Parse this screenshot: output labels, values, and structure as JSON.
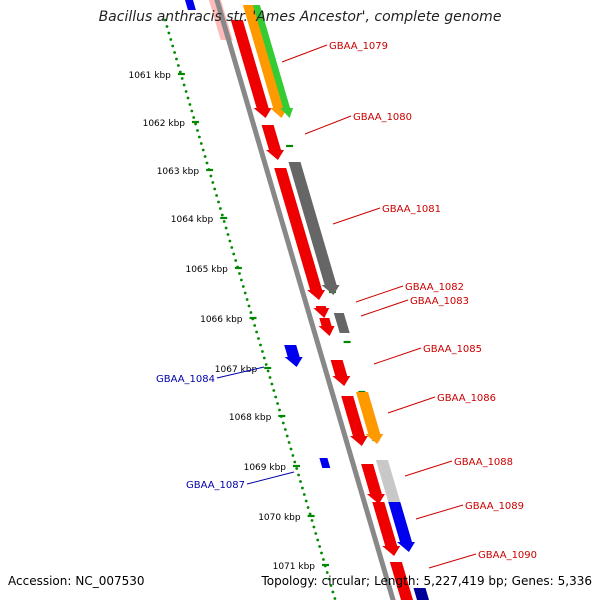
{
  "title": "Bacillus anthracis str. 'Ames Ancestor', complete genome",
  "footer": {
    "accession_label": "Accession:",
    "accession": "NC_007530",
    "topology_label": "Topology:",
    "topology": "circular;",
    "length_label": "Length:",
    "length": "5,227,419 bp;",
    "genes_label": "Genes:",
    "genes": "5,336"
  },
  "ticks": [
    "1061 kbp",
    "1062 kbp",
    "1063 kbp",
    "1064 kbp",
    "1065 kbp",
    "1066 kbp",
    "1067 kbp",
    "1068 kbp",
    "1069 kbp",
    "1070 kbp",
    "1071 kbp"
  ],
  "colors": {
    "red": "#ee0000",
    "orange": "#ff9900",
    "green": "#33cc33",
    "gray": "#666666",
    "lightgray": "#c8c8c8",
    "blue": "#0000ee",
    "darkblue": "#000099",
    "pink": "#ffbbbb",
    "tick": "#008800",
    "backbone": "#888888",
    "label_red": "#cc0000",
    "label_blue": "#0000aa"
  },
  "genes": [
    {
      "id": "GBAA_1079",
      "color": "red"
    },
    {
      "id": "GBAA_1080",
      "color": "red"
    },
    {
      "id": "GBAA_1081",
      "color": "red"
    },
    {
      "id": "GBAA_1082",
      "color": "red"
    },
    {
      "id": "GBAA_1083",
      "color": "red"
    },
    {
      "id": "GBAA_1084",
      "color": "blue"
    },
    {
      "id": "GBAA_1085",
      "color": "red"
    },
    {
      "id": "GBAA_1086",
      "color": "red"
    },
    {
      "id": "GBAA_1087",
      "color": "blue"
    },
    {
      "id": "GBAA_1088",
      "color": "red"
    },
    {
      "id": "GBAA_1089",
      "color": "red"
    },
    {
      "id": "GBAA_1090",
      "color": "red"
    }
  ]
}
